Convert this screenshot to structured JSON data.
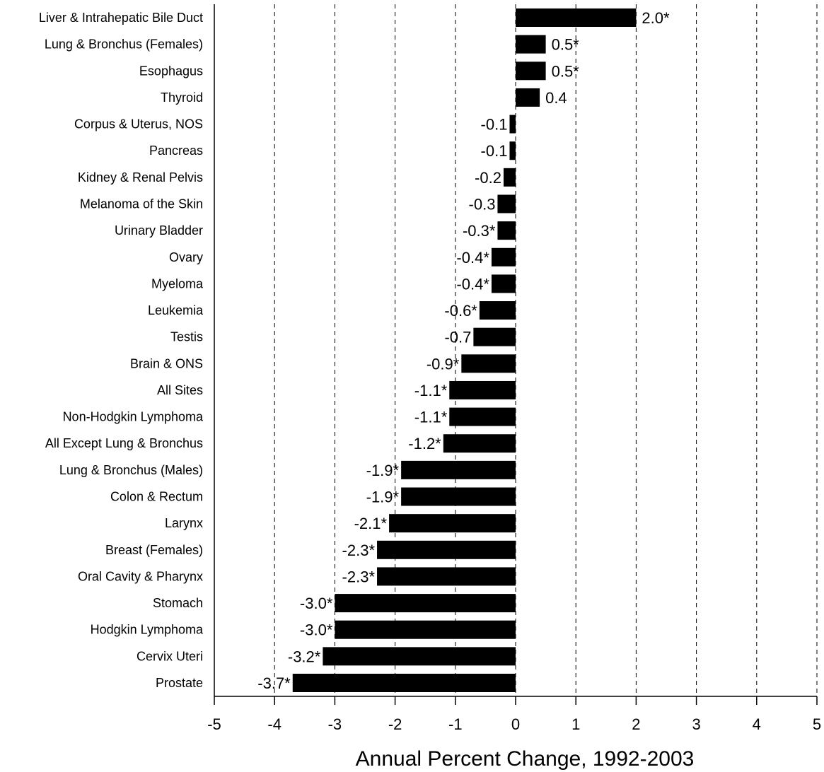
{
  "chart_data": {
    "type": "bar",
    "orientation": "horizontal",
    "categories": [
      "Liver & Intrahepatic Bile Duct",
      "Lung & Bronchus (Females)",
      "Esophagus",
      "Thyroid",
      "Corpus & Uterus, NOS",
      "Pancreas",
      "Kidney & Renal Pelvis",
      "Melanoma of the Skin",
      "Urinary Bladder",
      "Ovary",
      "Myeloma",
      "Leukemia",
      "Testis",
      "Brain & ONS",
      "All Sites",
      "Non-Hodgkin Lymphoma",
      "All Except Lung & Bronchus",
      "Lung & Bronchus (Males)",
      "Colon & Rectum",
      "Larynx",
      "Breast (Females)",
      "Oral Cavity & Pharynx",
      "Stomach",
      "Hodgkin Lymphoma",
      "Cervix Uteri",
      "Prostate"
    ],
    "values": [
      2.0,
      0.5,
      0.5,
      0.4,
      -0.1,
      -0.1,
      -0.2,
      -0.3,
      -0.3,
      -0.4,
      -0.4,
      -0.6,
      -0.7,
      -0.9,
      -1.1,
      -1.1,
      -1.2,
      -1.9,
      -1.9,
      -2.1,
      -2.3,
      -2.3,
      -3.0,
      -3.0,
      -3.2,
      -3.7
    ],
    "value_labels": [
      "2.0*",
      "0.5*",
      "0.5*",
      "0.4",
      "-0.1",
      "-0.1",
      "-0.2",
      "-0.3",
      "-0.3*",
      "-0.4*",
      "-0.4*",
      "-0.6*",
      "-0.7",
      "-0.9*",
      "-1.1*",
      "-1.1*",
      "-1.2*",
      "-1.9*",
      "-1.9*",
      "-2.1*",
      "-2.3*",
      "-2.3*",
      "-3.0*",
      "-3.0*",
      "-3.2*",
      "-3.7*"
    ],
    "xlabel": "Annual Percent Change, 1992-2003",
    "xlim": [
      -5,
      5
    ],
    "xticks": [
      -5,
      -4,
      -3,
      -2,
      -1,
      0,
      1,
      2,
      3,
      4,
      5
    ],
    "grid": "vertical dashed",
    "bar_color": "#000000"
  }
}
